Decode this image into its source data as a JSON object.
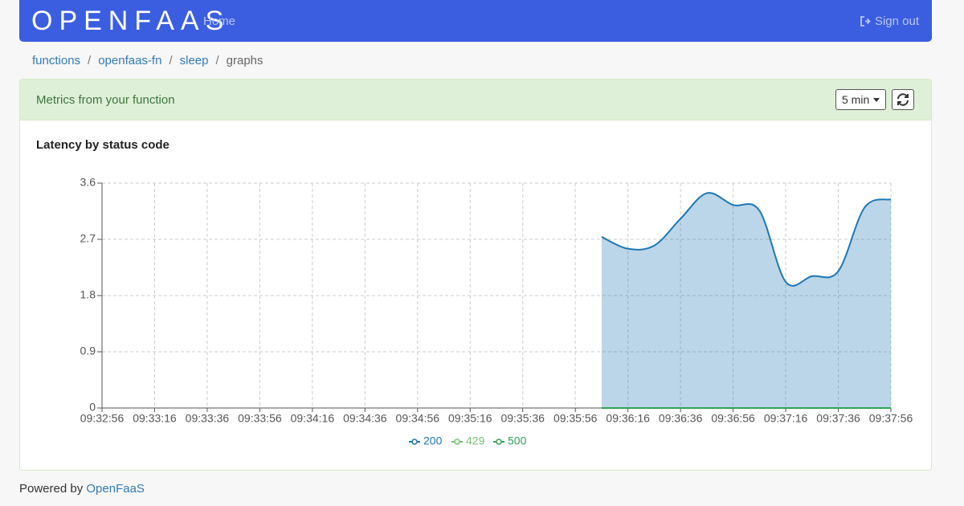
{
  "navbar": {
    "brand": "OPENFAAS",
    "home": "Home",
    "signout": "Sign out"
  },
  "breadcrumb": [
    "functions",
    "openfaas-fn",
    "sleep",
    "graphs"
  ],
  "panel": {
    "heading": "Metrics from your function",
    "range": "5 min"
  },
  "chart_data": {
    "type": "line",
    "title": "Latency by status code",
    "x": [
      "09:32:56",
      null,
      "09:33:16",
      null,
      "09:33:36",
      null,
      "09:33:56",
      null,
      "09:34:16",
      null,
      "09:34:36",
      null,
      "09:34:56",
      null,
      "09:35:16",
      null,
      "09:35:36",
      null,
      "09:35:56",
      null,
      "09:36:16",
      null,
      "09:36:36",
      null,
      "09:36:56",
      null,
      "09:37:16",
      null,
      "09:37:36",
      null,
      "09:37:56"
    ],
    "series": [
      {
        "name": "200",
        "color": "#1f77b4",
        "area": true,
        "values": [
          null,
          null,
          null,
          null,
          null,
          null,
          null,
          null,
          null,
          null,
          null,
          null,
          null,
          null,
          null,
          null,
          null,
          null,
          null,
          2.74,
          2.55,
          2.6,
          3.03,
          3.44,
          3.25,
          3.16,
          2.02,
          2.11,
          2.19,
          3.21,
          3.34
        ]
      },
      {
        "name": "429",
        "color": "#74c476",
        "values": [
          null,
          null,
          null,
          null,
          null,
          null,
          null,
          null,
          null,
          null,
          null,
          null,
          null,
          null,
          null,
          null,
          null,
          null,
          null,
          0,
          0,
          0,
          0,
          0,
          0,
          0,
          0,
          0,
          0,
          0,
          0
        ]
      },
      {
        "name": "500",
        "color": "#31a354",
        "values": [
          null,
          null,
          null,
          null,
          null,
          null,
          null,
          null,
          null,
          null,
          null,
          null,
          null,
          null,
          null,
          null,
          null,
          null,
          null,
          0,
          0,
          0,
          0,
          0,
          0,
          0,
          0,
          0,
          0,
          0,
          0
        ]
      }
    ],
    "ylim": [
      0,
      3.6
    ],
    "yticks": [
      0,
      0.9,
      1.8,
      2.7,
      3.6
    ],
    "grid": true
  },
  "footer": {
    "text": "Powered by",
    "link": "OpenFaaS"
  }
}
